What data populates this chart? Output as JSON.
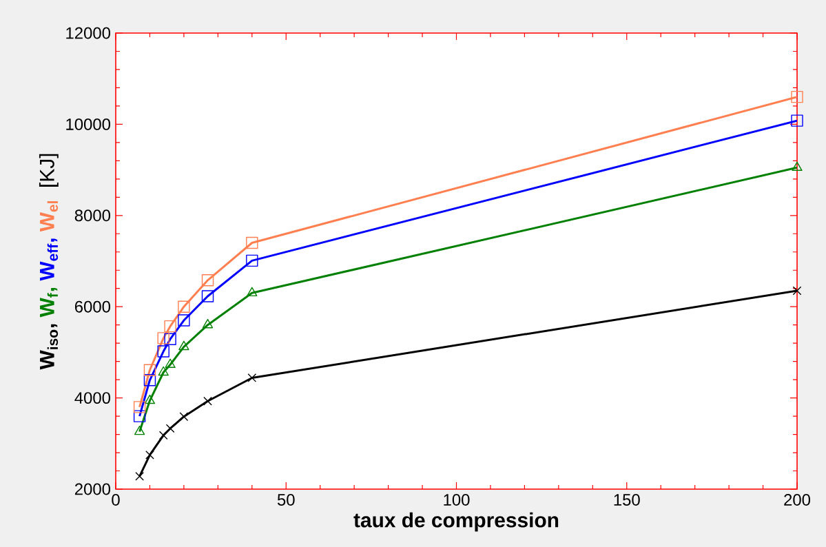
{
  "chart_data": {
    "type": "line",
    "xlabel": "taux de compression",
    "ylabel": "[KJ]",
    "x": [
      7,
      10,
      14,
      16,
      20,
      27,
      40,
      200
    ],
    "series": [
      {
        "name": "W$_{iso}$,",
        "color": "#000000",
        "marker": "cross",
        "values": [
          2280,
          2750,
          3180,
          3330,
          3590,
          3930,
          4440,
          6350
        ]
      },
      {
        "name": "W$_{f}$,",
        "color": "#008000",
        "marker": "triangle",
        "values": [
          3260,
          3940,
          4560,
          4730,
          5120,
          5600,
          6300,
          9050
        ]
      },
      {
        "name": "W$_{eff}$,",
        "color": "#0000ff",
        "marker": "square",
        "values": [
          3600,
          4390,
          5020,
          5290,
          5700,
          6230,
          7010,
          10080
        ]
      },
      {
        "name": "W$_{el}$",
        "color": "#ff7f50",
        "marker": "square",
        "values": [
          3800,
          4610,
          5310,
          5570,
          6000,
          6580,
          7400,
          10600
        ]
      }
    ],
    "xlim": [
      0,
      200
    ],
    "ylim": [
      2000,
      12000
    ],
    "xticks": [
      0,
      50,
      100,
      150,
      200
    ],
    "yticks": [
      2000,
      4000,
      6000,
      8000,
      10000,
      12000
    ],
    "grid": false,
    "line_style": "solid"
  }
}
